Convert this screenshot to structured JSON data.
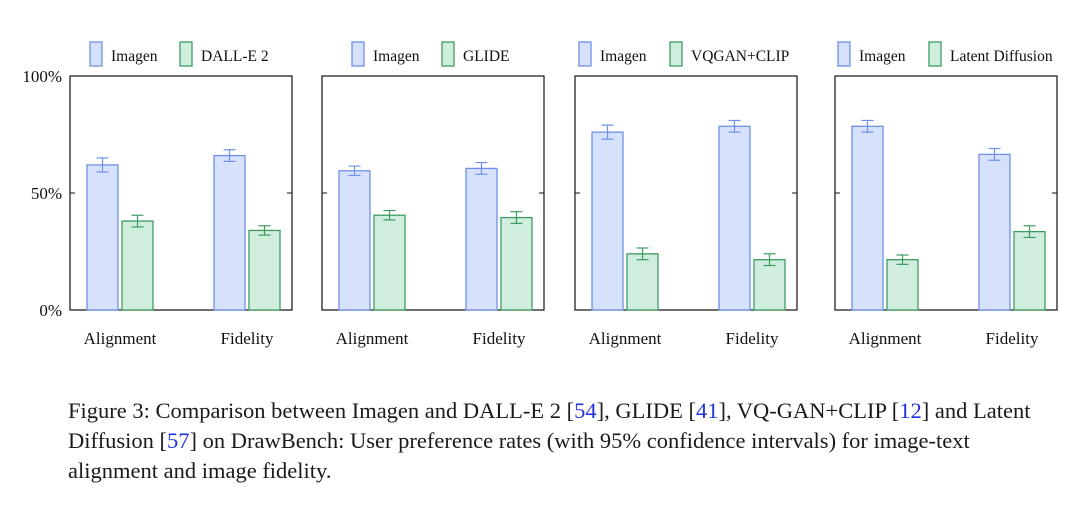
{
  "colors": {
    "imagen_fill": "#d6e1fb",
    "imagen_stroke": "#6f90e6",
    "other_fill": "#cfeedd",
    "other_stroke": "#3d9a63",
    "axis": "#111111",
    "ref": "#2233dd"
  },
  "chart_data": [
    {
      "type": "bar",
      "categories": [
        "Alignment",
        "Fidelity"
      ],
      "ylim": [
        0,
        100
      ],
      "yticks": [
        "0%",
        "50%",
        "100%"
      ],
      "series": [
        {
          "name": "Imagen",
          "values": [
            62,
            66
          ],
          "errors": [
            3,
            2.5
          ]
        },
        {
          "name": "DALL-E 2",
          "values": [
            38,
            34
          ],
          "errors": [
            2.5,
            2
          ]
        }
      ]
    },
    {
      "type": "bar",
      "categories": [
        "Alignment",
        "Fidelity"
      ],
      "ylim": [
        0,
        100
      ],
      "yticks": [
        "0%",
        "50%",
        "100%"
      ],
      "series": [
        {
          "name": "Imagen",
          "values": [
            59.5,
            60.5
          ],
          "errors": [
            2,
            2.5
          ]
        },
        {
          "name": "GLIDE",
          "values": [
            40.5,
            39.5
          ],
          "errors": [
            2,
            2.5
          ]
        }
      ]
    },
    {
      "type": "bar",
      "categories": [
        "Alignment",
        "Fidelity"
      ],
      "ylim": [
        0,
        100
      ],
      "yticks": [
        "0%",
        "50%",
        "100%"
      ],
      "series": [
        {
          "name": "Imagen",
          "values": [
            76,
            78.5
          ],
          "errors": [
            3,
            2.5
          ]
        },
        {
          "name": "VQGAN+CLIP",
          "values": [
            24,
            21.5
          ],
          "errors": [
            2.5,
            2.5
          ]
        }
      ]
    },
    {
      "type": "bar",
      "categories": [
        "Alignment",
        "Fidelity"
      ],
      "ylim": [
        0,
        100
      ],
      "yticks": [
        "0%",
        "50%",
        "100%"
      ],
      "series": [
        {
          "name": "Imagen",
          "values": [
            78.5,
            66.5
          ],
          "errors": [
            2.5,
            2.5
          ]
        },
        {
          "name": "Latent Diffusion",
          "values": [
            21.5,
            33.5
          ],
          "errors": [
            2,
            2.5
          ]
        }
      ]
    }
  ],
  "caption": {
    "p1": "Figure 3: Comparison between Imagen and DALL-E 2 [",
    "r1": "54",
    "p2": "], GLIDE [",
    "r2": "41",
    "p3": "], VQ-GAN+CLIP [",
    "r3": "12",
    "p4": "] and Latent Diffusion [",
    "r4": "57",
    "p5": "] on DrawBench: User preference rates (with 95% confidence intervals) for image-text alignment and image fidelity."
  }
}
